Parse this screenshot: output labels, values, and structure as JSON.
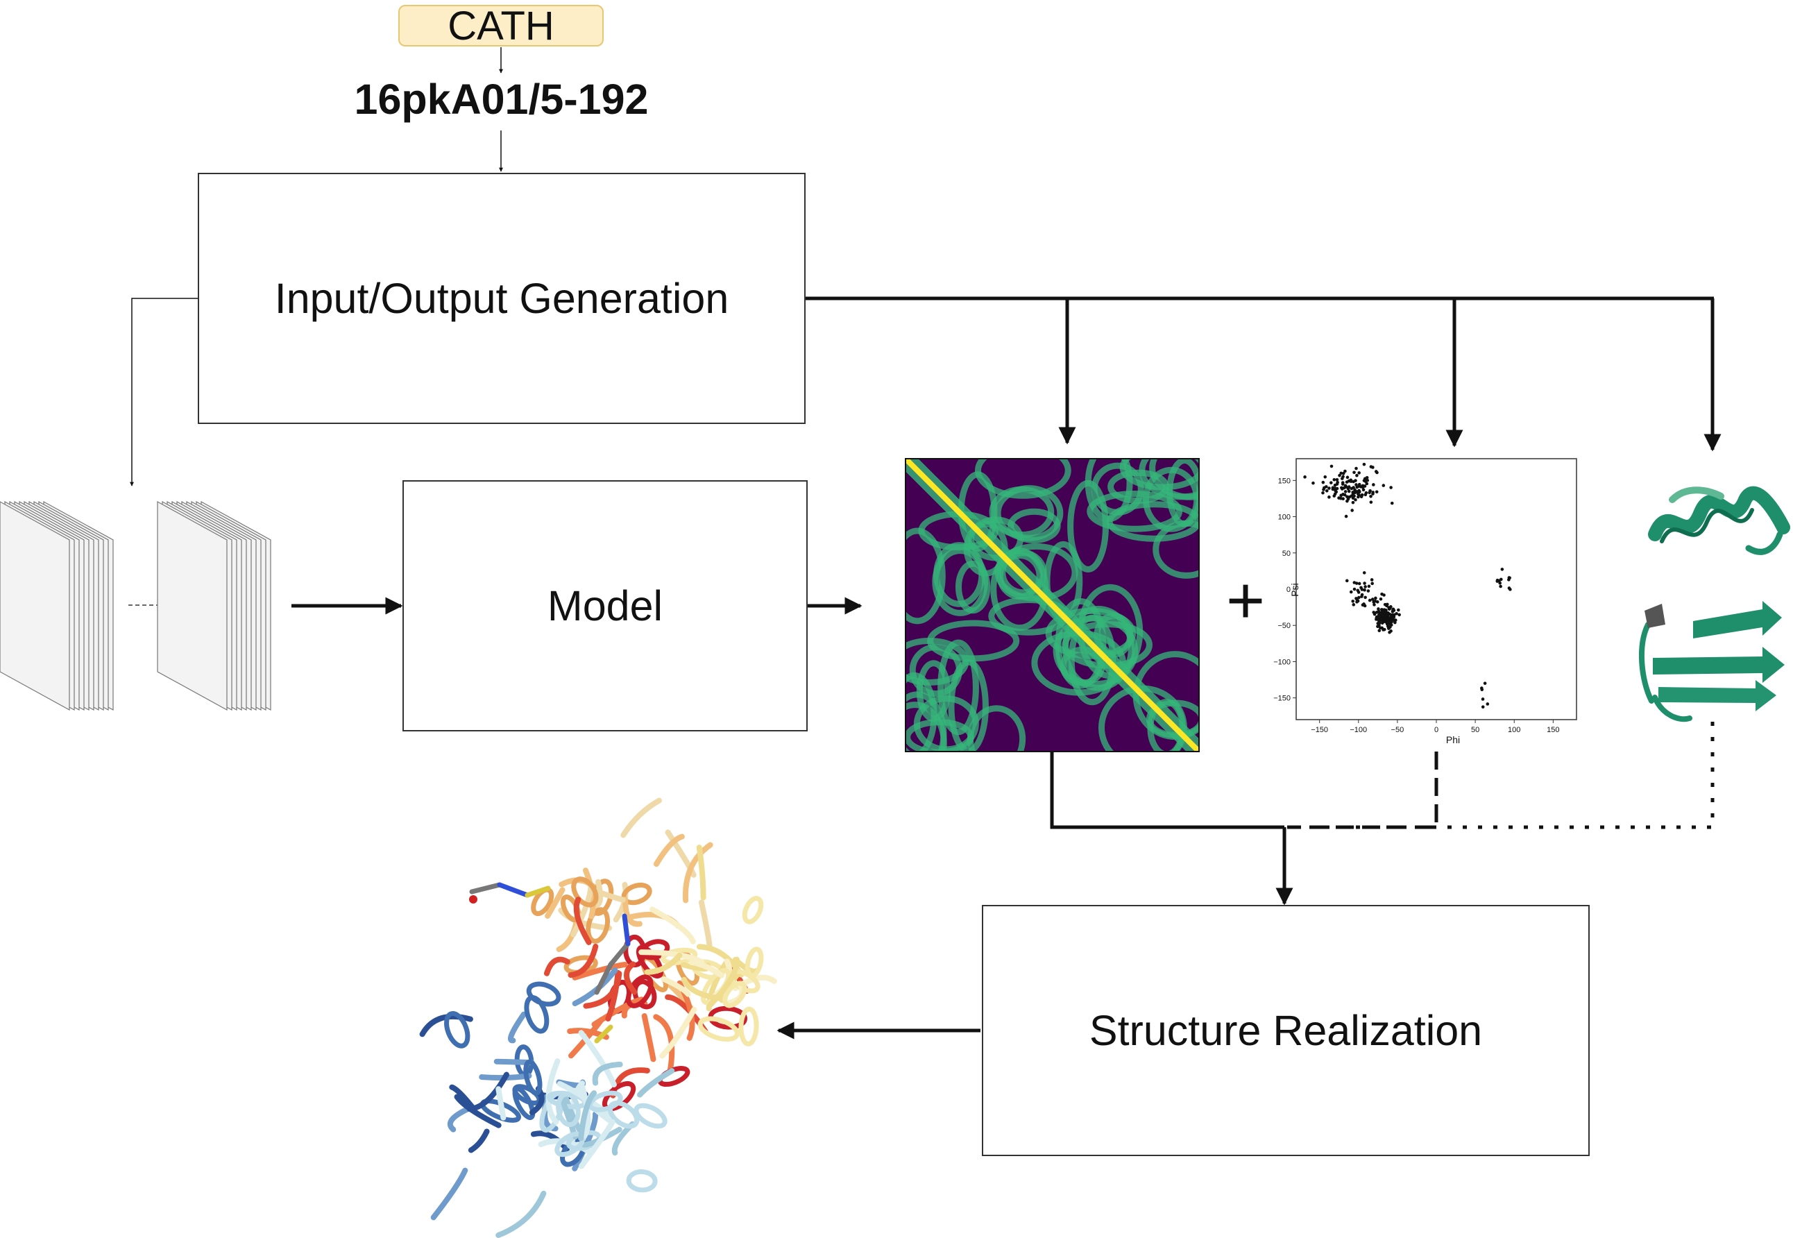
{
  "source": {
    "badge_label": "CATH",
    "domain_id": "16pkA01/5-192"
  },
  "boxes": {
    "io_generation": "Input/Output Generation",
    "model": "Model",
    "structure_realization": "Structure Realization"
  },
  "operators": {
    "plus": "+"
  },
  "ramachandran_plot": {
    "xlabel": "Phi",
    "ylabel": "Psi",
    "x_ticks": [
      "−150",
      "−100",
      "−50",
      "0",
      "50",
      "100",
      "150"
    ],
    "y_ticks": [
      "150",
      "100",
      "50",
      "0",
      "−50",
      "−100",
      "−150"
    ]
  },
  "colors": {
    "badge_fill": "#fdeec8",
    "contact_map_background": "#440154",
    "contact_map_ridge": "#35b779",
    "contact_map_diagonal": "#fde725",
    "secondary_structure_green": "#1e8f6a"
  },
  "icons": {
    "feature_stack_a": "feature-stack-icon",
    "feature_stack_b": "feature-stack-icon",
    "contact_map": "contact-map-image",
    "secondary_structure": "secondary-structure-image",
    "protein_structure": "protein-3d-structure-image"
  }
}
